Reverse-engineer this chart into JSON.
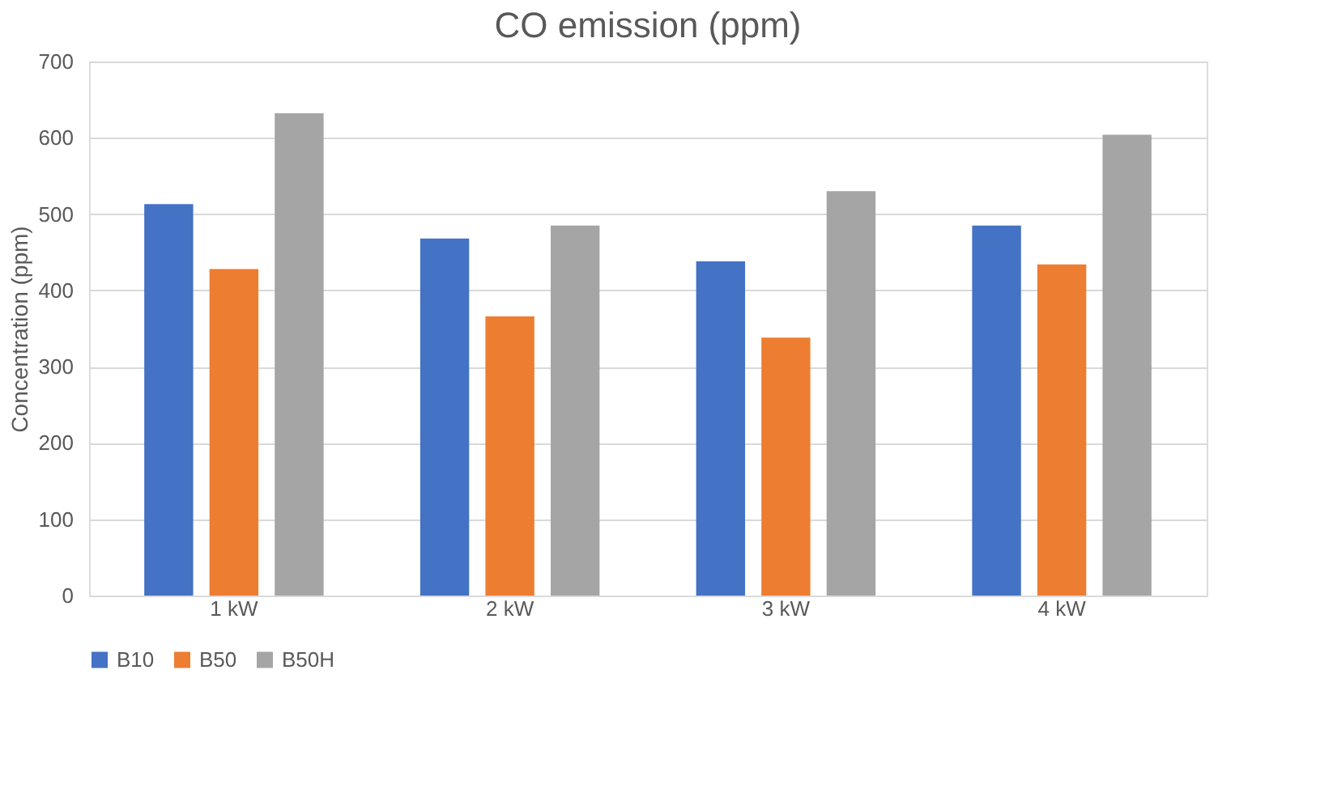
{
  "chart_data": {
    "type": "bar",
    "title": "CO emission (ppm)",
    "ylabel": "Concentration (ppm)",
    "categories": [
      "1 kW",
      "2 kW",
      "3 kW",
      "4 kW"
    ],
    "series": [
      {
        "name": "B10",
        "color": "#4472c4",
        "values": [
          513,
          468,
          438,
          485
        ]
      },
      {
        "name": "B50",
        "color": "#ed7d31",
        "values": [
          428,
          366,
          338,
          434
        ]
      },
      {
        "name": "B50H",
        "color": "#a5a5a5",
        "values": [
          632,
          485,
          530,
          604
        ]
      }
    ],
    "ylim": [
      0,
      700
    ],
    "yticks": [
      0,
      100,
      200,
      300,
      400,
      500,
      600,
      700
    ],
    "grid": "y",
    "legend": "bottom"
  }
}
